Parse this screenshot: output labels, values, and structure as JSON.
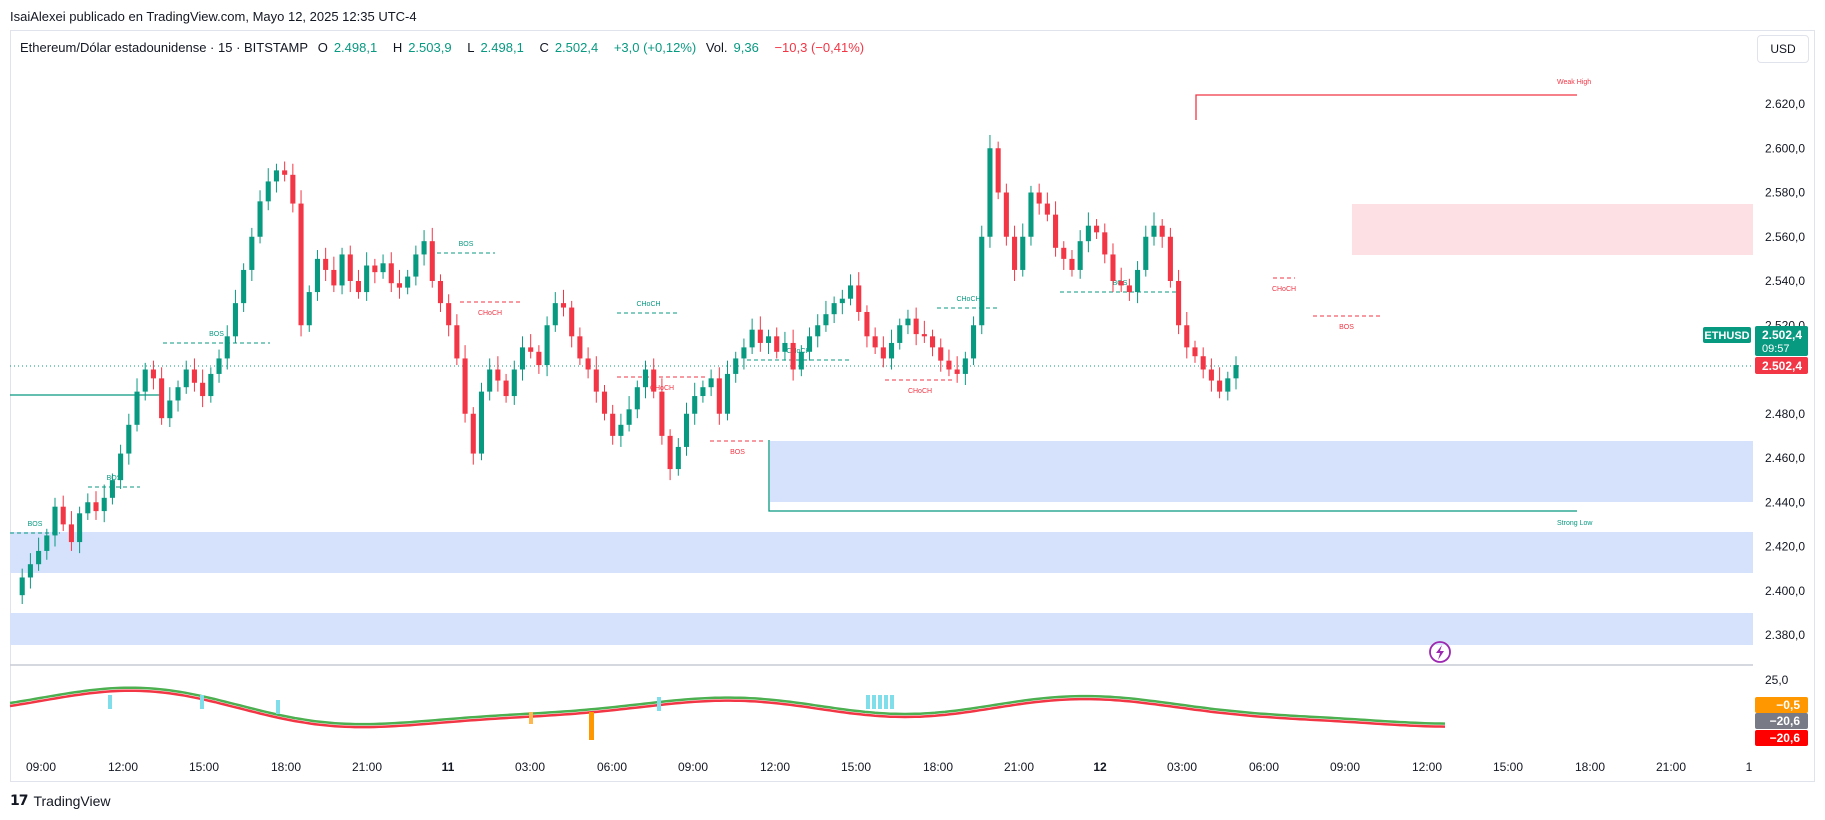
{
  "header": {
    "publisher_line": "IsaiAlexei publicado en TradingView.com, Mayo 12, 2025 12:35 UTC-4"
  },
  "legend": {
    "symbol": "Ethereum/Dólar estadounidense · 15 · BITSTAMP",
    "o_label": "O",
    "o": "2.498,1",
    "h_label": "H",
    "h": "2.503,9",
    "l_label": "L",
    "l": "2.498,1",
    "c_label": "C",
    "c": "2.502,4",
    "change": "+3,0 (+0,12%)",
    "vol_label": "Vol.",
    "vol": "9,36",
    "vol_change": "−10,3 (−0,41%)"
  },
  "toolbar": {
    "currency": "USD"
  },
  "price_axis": {
    "ticks": [
      "2.620,0",
      "2.600,0",
      "2.580,0",
      "2.560,0",
      "2.540,0",
      "2.520,0",
      "2.480,0",
      "2.460,0",
      "2.440,0",
      "2.420,0",
      "2.400,0",
      "2.380,0"
    ],
    "symbol_badge": "ETHUSD",
    "last_price": "2.502,4",
    "countdown": "09:57",
    "bid_price": "2.502,4"
  },
  "indicator_axis": {
    "top_tick": "25,0",
    "badges": [
      "−0,5",
      "−20,6",
      "−20,6"
    ]
  },
  "time_axis": {
    "ticks": [
      "09:00",
      "12:00",
      "15:00",
      "18:00",
      "21:00",
      "11",
      "03:00",
      "06:00",
      "09:00",
      "12:00",
      "15:00",
      "18:00",
      "21:00",
      "12",
      "03:00",
      "06:00",
      "09:00",
      "12:00",
      "15:00",
      "18:00",
      "21:00",
      "1"
    ]
  },
  "structure_labels": {
    "bos": "BOS",
    "choch": "CHoCH",
    "weak_high": "Weak High",
    "strong_low": "Strong Low"
  },
  "colors": {
    "up": "#089981",
    "down": "#f23645",
    "zone_blue": "#d6e2fb",
    "zone_red": "#fde0e3"
  },
  "footer": {
    "brand": "TradingView"
  }
}
